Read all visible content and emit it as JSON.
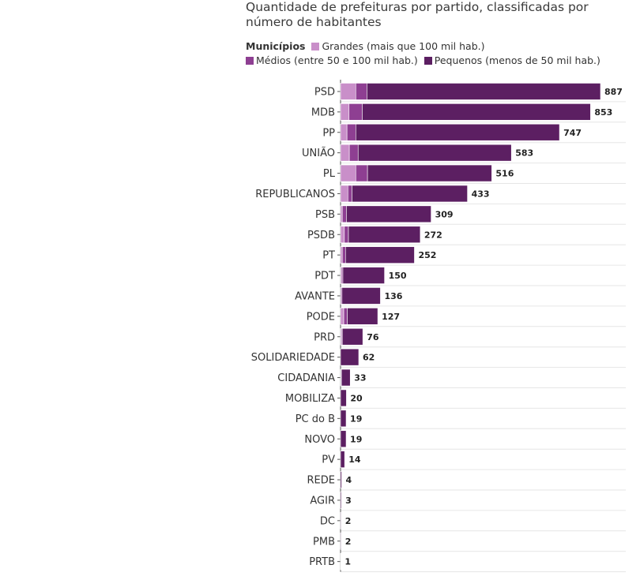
{
  "chart_data": {
    "type": "bar",
    "orientation": "horizontal",
    "stacked": true,
    "title": "Quantidade de prefeituras por partido, classificadas por número de habitantes",
    "legend_heading": "Municípios",
    "legend_position": "top",
    "grid": true,
    "xlim": [
      0,
      887
    ],
    "categories": [
      "PSD",
      "MDB",
      "PP",
      "UNIÃO",
      "PL",
      "REPUBLICANOS",
      "PSB",
      "PSDB",
      "PT",
      "PDT",
      "AVANTE",
      "PODE",
      "PRD",
      "SOLIDARIEDADE",
      "CIDADANIA",
      "MOBILIZA",
      "PC do B",
      "NOVO",
      "PV",
      "REDE",
      "AGIR",
      "DC",
      "PMB",
      "PRTB"
    ],
    "totals": [
      887,
      853,
      747,
      583,
      516,
      433,
      309,
      272,
      252,
      150,
      136,
      127,
      76,
      62,
      33,
      20,
      19,
      19,
      14,
      4,
      3,
      2,
      2,
      1
    ],
    "series": [
      {
        "name": "Grandes (mais que 100 mil hab.)",
        "color": "#c98fc9",
        "values": [
          52,
          29,
          22,
          30,
          52,
          25,
          6,
          13,
          6,
          3,
          1,
          11,
          3,
          0,
          1,
          0,
          0,
          0,
          0,
          0,
          0,
          0,
          0,
          0
        ]
      },
      {
        "name": "Médios (entre 50 e 100 mil hab.)",
        "color": "#8e3f92",
        "values": [
          38,
          45,
          30,
          30,
          40,
          14,
          14,
          14,
          11,
          5,
          4,
          12,
          3,
          0,
          2,
          0,
          0,
          0,
          0,
          0,
          0,
          0,
          0,
          0
        ]
      },
      {
        "name": "Pequenos (menos de 50 mil hab.)",
        "color": "#5c1f62",
        "values": [
          797,
          779,
          695,
          523,
          424,
          394,
          289,
          245,
          235,
          142,
          131,
          104,
          70,
          62,
          30,
          20,
          19,
          19,
          14,
          4,
          3,
          2,
          2,
          1
        ]
      }
    ]
  }
}
